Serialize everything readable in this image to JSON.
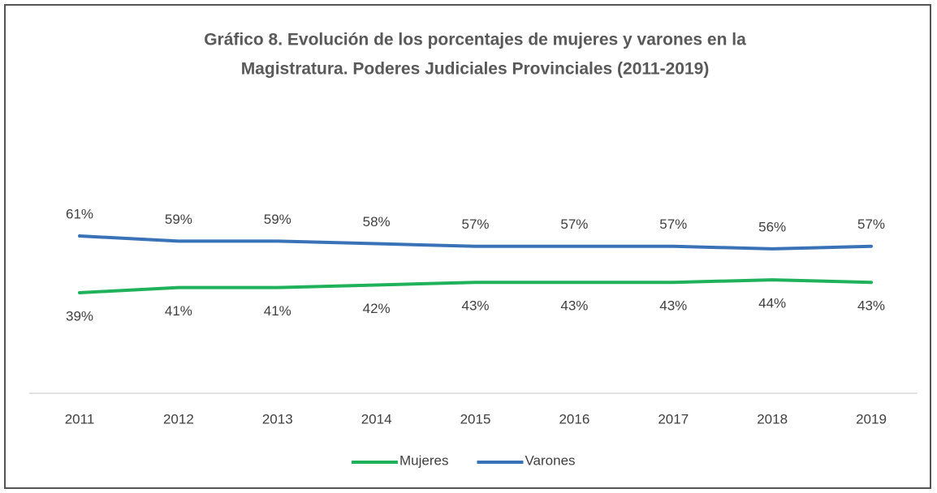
{
  "chart_data": {
    "type": "line",
    "title": [
      "Gráfico 8.  Evolución de los porcentajes de mujeres y varones en la",
      "Magistratura.  Poderes Judiciales Provinciales (2011-2019)"
    ],
    "categories": [
      "2011",
      "2012",
      "2013",
      "2014",
      "2015",
      "2016",
      "2017",
      "2018",
      "2019"
    ],
    "series": [
      {
        "name": "Mujeres",
        "color": "#1fb25a",
        "values": [
          39,
          41,
          41,
          42,
          43,
          43,
          43,
          44,
          43
        ],
        "value_labels": [
          "39%",
          "41%",
          "41%",
          "42%",
          "43%",
          "43%",
          "43%",
          "44%",
          "43%"
        ]
      },
      {
        "name": "Varones",
        "color": "#3a72b8",
        "values": [
          61,
          59,
          59,
          58,
          57,
          57,
          57,
          56,
          57
        ],
        "value_labels": [
          "61%",
          "59%",
          "59%",
          "58%",
          "57%",
          "57%",
          "57%",
          "56%",
          "57%"
        ]
      }
    ],
    "ylim": [
      0,
      100
    ]
  }
}
